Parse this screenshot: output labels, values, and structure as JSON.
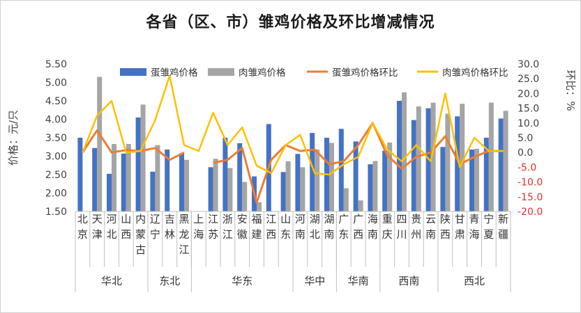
{
  "chart_data": {
    "type": "bar",
    "title": "各省（区、市）雏鸡价格及环比增减情况",
    "ylabel": "价格：元/只",
    "y2label": "环比：%",
    "ylim": [
      1.5,
      5.5
    ],
    "yticks": [
      "1.50",
      "2.00",
      "2.50",
      "3.00",
      "3.50",
      "4.00",
      "4.50",
      "5.00",
      "5.50"
    ],
    "y2lim": [
      -20,
      30
    ],
    "y2ticks": [
      "-20.0",
      "-15.0",
      "-10.0",
      "-5.0",
      "0.0",
      "5.0",
      "10.0",
      "15.0",
      "20.0",
      "25.0",
      "30.0"
    ],
    "legend_position": "top",
    "categories": [
      "北京",
      "天津",
      "河北",
      "山西",
      "内蒙古",
      "辽宁",
      "吉林",
      "黑龙江",
      "上海",
      "江苏",
      "浙江",
      "安徽",
      "福建",
      "江西",
      "山东",
      "河南",
      "湖北",
      "湖南",
      "广东",
      "广西",
      "海南",
      "重庆",
      "四川",
      "贵州",
      "云南",
      "陕西",
      "甘肃",
      "青海",
      "宁夏",
      "新疆"
    ],
    "regions": [
      {
        "name": "华北",
        "count": 5
      },
      {
        "name": "东北",
        "count": 3
      },
      {
        "name": "华东",
        "count": 7
      },
      {
        "name": "华中",
        "count": 3
      },
      {
        "name": "华南",
        "count": 3
      },
      {
        "name": "西南",
        "count": 4
      },
      {
        "name": "西北",
        "count": 5
      }
    ],
    "series": [
      {
        "name": "蛋雏鸡价格",
        "type": "bar",
        "axis": "left",
        "color": "#4472C4",
        "values": [
          3.5,
          3.22,
          2.52,
          3.07,
          4.05,
          2.58,
          3.18,
          3.07,
          null,
          2.7,
          3.5,
          3.35,
          2.45,
          3.87,
          2.57,
          3.06,
          3.63,
          3.5,
          3.74,
          3.4,
          2.78,
          3.15,
          4.5,
          3.98,
          4.3,
          3.25,
          4.08,
          3.18,
          3.5,
          4.02
        ]
      },
      {
        "name": "肉雏鸡价格",
        "type": "bar",
        "axis": "left",
        "color": "#A5A5A5",
        "values": [
          null,
          5.15,
          3.33,
          3.33,
          4.4,
          3.3,
          null,
          2.9,
          null,
          2.93,
          2.68,
          2.3,
          1.75,
          null,
          2.86,
          2.7,
          3.18,
          3.36,
          2.13,
          1.8,
          2.87,
          3.37,
          4.73,
          4.35,
          4.45,
          4.15,
          4.42,
          3.2,
          4.45,
          4.23
        ]
      },
      {
        "name": "蛋雏鸡价格环比",
        "type": "line",
        "axis": "right",
        "color": "#ED7D31",
        "values": [
          0.0,
          7.5,
          0.0,
          0.8,
          0.5,
          1.5,
          -2.5,
          0.0,
          null,
          -3.5,
          -2.5,
          1.5,
          -17.0,
          -2.5,
          2.5,
          0.5,
          1.0,
          -4.0,
          -3.0,
          2.5,
          10.0,
          -1.0,
          -5.5,
          -1.5,
          0.0,
          5.5,
          -4.0,
          -1.5,
          0.5,
          0.5
        ]
      },
      {
        "name": "肉雏鸡价格环比",
        "type": "line",
        "axis": "right",
        "color": "#FFC000",
        "values": [
          0.0,
          12.5,
          17.5,
          0.0,
          0.5,
          11.0,
          26.0,
          2.5,
          0.5,
          13.5,
          2.5,
          8.5,
          -4.5,
          -7.0,
          2.5,
          6.0,
          -7.0,
          -7.5,
          -4.0,
          -1.5,
          10.0,
          1.0,
          -3.0,
          2.5,
          -3.0,
          20.0,
          -5.0,
          5.0,
          0.5,
          0.5
        ]
      }
    ]
  }
}
